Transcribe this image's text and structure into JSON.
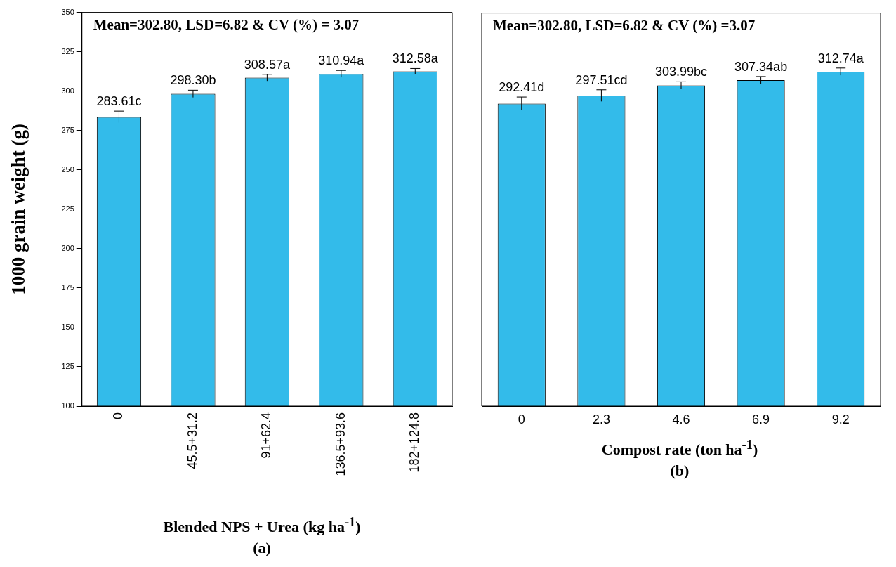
{
  "chart_data": [
    {
      "type": "bar",
      "ylabel": "1000 grain weight (g)",
      "xlabel": "Blended NPS + Urea (kg ha$^{-1}$)",
      "subtitle": "(a)",
      "annotations": [
        "Mean=302.80, LSD=6.82 & CV (%) = 3.07"
      ],
      "categories": [
        "0",
        "45.5+31.2",
        "91+62.4",
        "136.5+93.6",
        "182+124.8"
      ],
      "values": [
        283.61,
        298.3,
        308.57,
        310.94,
        312.58
      ],
      "value_labels": [
        "283.61c",
        "298.30b",
        "308.57a",
        "310.94a",
        "312.58a"
      ],
      "errors": [
        3.7,
        2.3,
        2.1,
        2.2,
        1.8
      ],
      "color": "#33bbea",
      "ylim": [
        100,
        350
      ],
      "yticks": [
        100,
        125,
        150,
        175,
        200,
        225,
        250,
        275,
        300,
        325,
        350
      ],
      "grid": false,
      "legend": false
    },
    {
      "type": "bar",
      "xlabel": "Compost rate (ton ha$^{-1}$)",
      "subtitle": "(b)",
      "annotations": [
        "Mean=302.80, LSD=6.82 & CV (%) =3.07"
      ],
      "categories": [
        "0",
        "2.3",
        "4.6",
        "6.9",
        "9.2"
      ],
      "values": [
        292.41,
        297.51,
        303.99,
        307.34,
        312.74
      ],
      "value_labels": [
        "292.41d",
        "297.51cd",
        "303.99bc",
        "307.34ab",
        "312.74a"
      ],
      "errors": [
        4.2,
        3.7,
        2.3,
        2.3,
        2.3
      ],
      "color": "#33bbea",
      "ylim": [
        100,
        350
      ],
      "tick_labels": "x",
      "grid": false,
      "legend": false
    }
  ]
}
